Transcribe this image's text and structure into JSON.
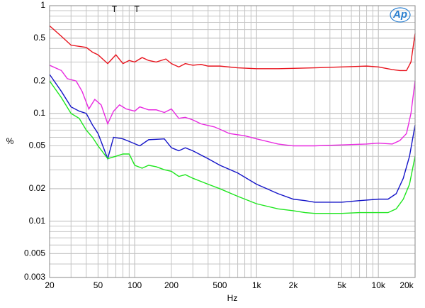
{
  "chart_data": {
    "type": "line",
    "xlabel": "Hz",
    "ylabel": "%",
    "logo": "Ap",
    "log_x": true,
    "log_y": true,
    "grid": true,
    "xlim": [
      20,
      20000
    ],
    "ylim": [
      0.003,
      1
    ],
    "xticks": [
      20,
      50,
      100,
      200,
      500,
      {
        "value": 1000,
        "label": "1k"
      },
      {
        "value": 2000,
        "label": "2k"
      },
      {
        "value": 5000,
        "label": "5k"
      },
      {
        "value": 10000,
        "label": "10k"
      },
      {
        "value": 20000,
        "label": "20k"
      }
    ],
    "yticks": [
      1,
      0.5,
      0.2,
      0.1,
      0.05,
      0.02,
      0.01,
      0.005,
      0.003
    ],
    "annotations": [
      {
        "text": "T",
        "x": 68
      },
      {
        "text": "T",
        "x": 104
      }
    ],
    "series": [
      {
        "color": "#e8141e",
        "x": [
          20,
          25,
          30,
          40,
          45,
          50,
          60,
          70,
          80,
          90,
          100,
          115,
          130,
          150,
          180,
          200,
          230,
          260,
          300,
          350,
          400,
          500,
          700,
          1000,
          1500,
          2000,
          3000,
          5000,
          8000,
          10000,
          13000,
          15000,
          17000,
          18500,
          20000
        ],
        "values": [
          0.65,
          0.52,
          0.43,
          0.41,
          0.37,
          0.35,
          0.29,
          0.35,
          0.29,
          0.31,
          0.3,
          0.33,
          0.31,
          0.3,
          0.32,
          0.29,
          0.27,
          0.29,
          0.28,
          0.285,
          0.275,
          0.275,
          0.265,
          0.26,
          0.26,
          0.262,
          0.265,
          0.27,
          0.275,
          0.27,
          0.255,
          0.25,
          0.25,
          0.3,
          0.55
        ]
      },
      {
        "color": "#e829e0",
        "x": [
          20,
          25,
          28,
          33,
          37,
          42,
          47,
          53,
          60,
          67,
          75,
          85,
          100,
          110,
          130,
          150,
          175,
          200,
          230,
          260,
          300,
          350,
          450,
          600,
          800,
          1000,
          1500,
          2000,
          3000,
          5000,
          8000,
          10000,
          13000,
          15000,
          17000,
          18500,
          20000
        ],
        "values": [
          0.28,
          0.25,
          0.21,
          0.2,
          0.16,
          0.11,
          0.135,
          0.12,
          0.08,
          0.105,
          0.12,
          0.11,
          0.105,
          0.115,
          0.108,
          0.108,
          0.102,
          0.11,
          0.09,
          0.092,
          0.087,
          0.08,
          0.075,
          0.065,
          0.062,
          0.058,
          0.052,
          0.05,
          0.05,
          0.051,
          0.052,
          0.053,
          0.052,
          0.056,
          0.065,
          0.1,
          0.2
        ]
      },
      {
        "color": "#1414c8",
        "x": [
          20,
          25,
          30,
          35,
          40,
          45,
          50,
          60,
          67,
          80,
          90,
          110,
          130,
          175,
          200,
          230,
          260,
          300,
          400,
          500,
          700,
          1000,
          1500,
          2000,
          2500,
          3000,
          4000,
          5000,
          7000,
          10000,
          12000,
          14000,
          16000,
          18000,
          20000
        ],
        "values": [
          0.23,
          0.16,
          0.115,
          0.105,
          0.1,
          0.078,
          0.065,
          0.038,
          0.06,
          0.058,
          0.055,
          0.05,
          0.057,
          0.058,
          0.048,
          0.045,
          0.048,
          0.045,
          0.038,
          0.033,
          0.028,
          0.022,
          0.018,
          0.016,
          0.0155,
          0.015,
          0.015,
          0.015,
          0.0155,
          0.016,
          0.016,
          0.018,
          0.025,
          0.04,
          0.078
        ]
      },
      {
        "color": "#1ee61e",
        "x": [
          20,
          25,
          30,
          35,
          40,
          45,
          50,
          60,
          70,
          80,
          90,
          100,
          115,
          130,
          150,
          175,
          200,
          230,
          260,
          300,
          400,
          500,
          700,
          1000,
          1500,
          2000,
          2500,
          3000,
          5000,
          7000,
          10000,
          12000,
          14000,
          16000,
          18000,
          20000
        ],
        "values": [
          0.2,
          0.14,
          0.1,
          0.09,
          0.07,
          0.06,
          0.05,
          0.038,
          0.04,
          0.042,
          0.042,
          0.033,
          0.031,
          0.033,
          0.032,
          0.03,
          0.029,
          0.026,
          0.027,
          0.025,
          0.022,
          0.02,
          0.017,
          0.0145,
          0.013,
          0.0125,
          0.012,
          0.0118,
          0.0118,
          0.012,
          0.012,
          0.012,
          0.013,
          0.016,
          0.022,
          0.04
        ]
      }
    ]
  }
}
